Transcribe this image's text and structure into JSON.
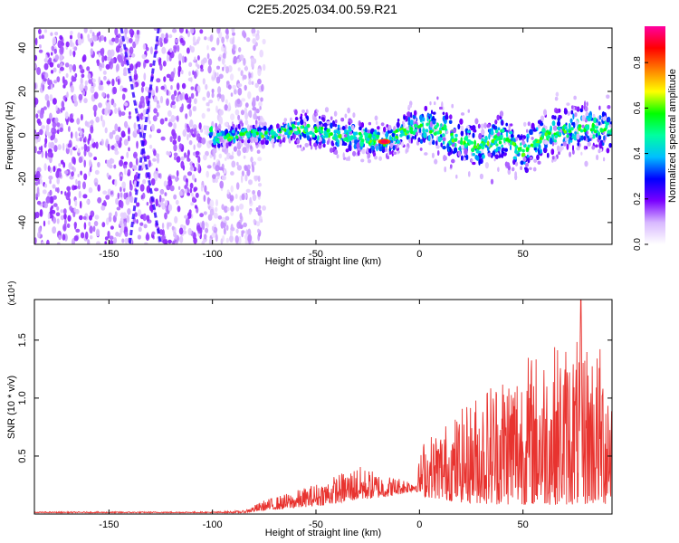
{
  "title": "C2E5.2025.034.00.59.R21",
  "chart_data": [
    {
      "type": "heatmap",
      "title": "C2E5.2025.034.00.59.R21",
      "xlabel": "Height of straight line (km)",
      "ylabel": "Frequency (Hz)",
      "xlim": [
        -186,
        93
      ],
      "ylim": [
        -50,
        49
      ],
      "xticks": [
        -150,
        -100,
        -50,
        0,
        50
      ],
      "yticks": [
        -40,
        -20,
        0,
        20,
        40
      ],
      "colorbar": {
        "label": "Normalized spectral amplitude",
        "range": [
          0,
          0.96
        ],
        "ticks": [
          "0.0",
          "0.2",
          "0.4",
          "0.6",
          "0.8"
        ],
        "colormap": [
          "#ffffff",
          "#d8b8ff",
          "#7a00ff",
          "#0000ff",
          "#00bfff",
          "#00ffa0",
          "#00ff00",
          "#ffff00",
          "#ff8000",
          "#ff0000",
          "#ff00a0"
        ]
      },
      "noise_region_km": [
        -186,
        -100
      ],
      "diagonal_streaks": [
        {
          "x_at_top": -144,
          "x_at_bottom": -125
        },
        {
          "x_at_top": -126,
          "x_at_bottom": -140
        }
      ],
      "centerline_hz": [
        {
          "x": -100,
          "y": -2
        },
        {
          "x": -85,
          "y": 1
        },
        {
          "x": -70,
          "y": 0
        },
        {
          "x": -60,
          "y": 3
        },
        {
          "x": -50,
          "y": 2
        },
        {
          "x": -40,
          "y": 0
        },
        {
          "x": -30,
          "y": -1
        },
        {
          "x": -20,
          "y": -2
        },
        {
          "x": -15,
          "y": -3
        },
        {
          "x": -8,
          "y": 2
        },
        {
          "x": 0,
          "y": 4
        },
        {
          "x": 10,
          "y": 2
        },
        {
          "x": 20,
          "y": -3
        },
        {
          "x": 30,
          "y": -5
        },
        {
          "x": 40,
          "y": -1
        },
        {
          "x": 50,
          "y": -8
        },
        {
          "x": 60,
          "y": -1
        },
        {
          "x": 70,
          "y": 2
        },
        {
          "x": 80,
          "y": 4
        },
        {
          "x": 93,
          "y": 2
        }
      ],
      "peak": {
        "x": -17,
        "y": -3,
        "amplitude": 0.96
      }
    },
    {
      "type": "line",
      "xlabel": "Height of straight line (km)",
      "ylabel": "SNR (10 * v/v)",
      "y_multiplier": "(x10⁴)",
      "xlim": [
        -186,
        93
      ],
      "ylim": [
        0,
        1.85
      ],
      "xticks": [
        -150,
        -100,
        -50,
        0,
        50
      ],
      "yticks": [
        "0.5",
        "1.0",
        "1.5"
      ],
      "color": "#e8332f",
      "envelope": [
        {
          "x": -186,
          "base": 0.01,
          "peak": 0.02
        },
        {
          "x": -100,
          "base": 0.01,
          "peak": 0.02
        },
        {
          "x": -85,
          "base": 0.01,
          "peak": 0.03
        },
        {
          "x": -75,
          "base": 0.03,
          "peak": 0.12
        },
        {
          "x": -60,
          "base": 0.05,
          "peak": 0.2
        },
        {
          "x": -45,
          "base": 0.08,
          "peak": 0.3
        },
        {
          "x": -30,
          "base": 0.12,
          "peak": 0.42
        },
        {
          "x": -15,
          "base": 0.15,
          "peak": 0.33
        },
        {
          "x": -2,
          "base": 0.2,
          "peak": 0.3
        },
        {
          "x": 2,
          "base": 0.15,
          "peak": 0.65
        },
        {
          "x": 20,
          "base": 0.1,
          "peak": 0.9
        },
        {
          "x": 40,
          "base": 0.08,
          "peak": 1.3
        },
        {
          "x": 60,
          "base": 0.08,
          "peak": 1.45
        },
        {
          "x": 80,
          "base": 0.08,
          "peak": 1.55
        },
        {
          "x": 93,
          "base": 0.08,
          "peak": 1.4
        }
      ],
      "max_point": {
        "x": 78,
        "y": 1.85
      }
    }
  ]
}
